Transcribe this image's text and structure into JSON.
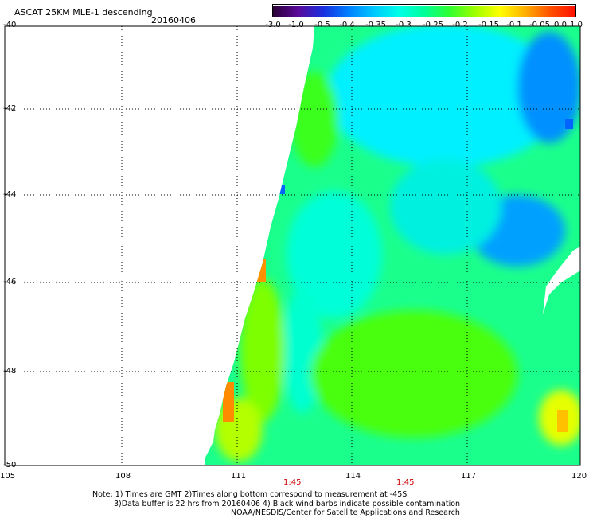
{
  "header": {
    "title": "ASCAT 25KM MLE-1 descending",
    "date": "20160406"
  },
  "colorbar": {
    "tick_labels": [
      "-3.0",
      "-1.0",
      "-0.5",
      "-0.4",
      "-0.35",
      "-0.3",
      "-0.25",
      "-0.2",
      "-0.15",
      "-0.1",
      "-0.05",
      "0.0",
      "1.0"
    ],
    "colors": [
      "#2a0036",
      "#5a0a9a",
      "#1a30e0",
      "#0080ff",
      "#00c8ff",
      "#00ffe8",
      "#00ff9a",
      "#30ff30",
      "#9cff00",
      "#ffff00",
      "#ffb000",
      "#ff5000",
      "#ff1000"
    ]
  },
  "map": {
    "lat_labels": [
      "-40",
      "-42",
      "-44",
      "-46",
      "-48",
      "-50"
    ],
    "lon_labels": [
      "105",
      "108",
      "111",
      "114",
      "117",
      "120"
    ],
    "lat_range": [
      -50,
      -40
    ],
    "lon_range": [
      105,
      120
    ],
    "swath_edge_color": "#cc0000"
  },
  "time_labels": [
    "1:45",
    "1:45"
  ],
  "notes": {
    "line1": "Note: 1) Times are GMT 2)Times along bottom correspond to measurement at -45S",
    "line2": "3)Data buffer is 22 hrs from 20160406 4) Black wind barbs indicate possible contamination",
    "line3": "NOAA/NESDIS/Center for Satellite Applications and Research"
  }
}
